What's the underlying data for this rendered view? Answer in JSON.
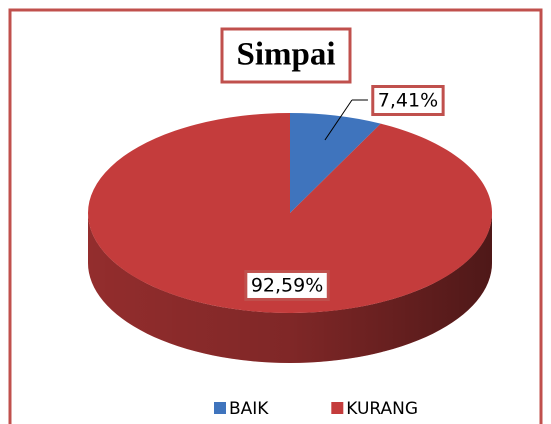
{
  "chart_data": {
    "type": "pie",
    "title": "Simpai",
    "categories": [
      "BAIK",
      "KURANG"
    ],
    "values": [
      7.41,
      92.59
    ],
    "value_labels": [
      "7,41%",
      "92,59%"
    ],
    "colors": [
      "#3f74bd",
      "#c43c3c"
    ],
    "legend": "bottom"
  }
}
